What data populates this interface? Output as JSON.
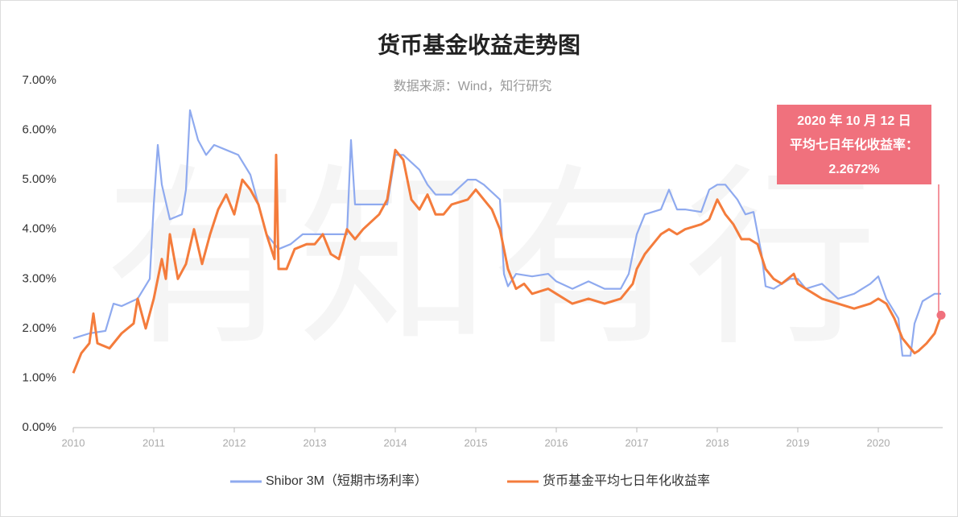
{
  "chart_data": {
    "type": "line",
    "title": "货币基金收益走势图",
    "subtitle": "数据来源：Wind，知行研究",
    "watermark": "有知有行",
    "annotation": [
      "2020 年 10 月 12 日",
      "平均七日年化收益率：",
      "2.2672%"
    ],
    "xlim": [
      2010,
      2020.8
    ],
    "xticks": [
      2010,
      2011,
      2012,
      2013,
      2014,
      2015,
      2016,
      2017,
      2018,
      2019,
      2020
    ],
    "ylim": [
      0,
      7
    ],
    "yticks": [
      {
        "value": 0,
        "label": "0.00%"
      },
      {
        "value": 1,
        "label": "1.00%"
      },
      {
        "value": 2,
        "label": "2.00%"
      },
      {
        "value": 3,
        "label": "3.00%"
      },
      {
        "value": 4,
        "label": "4.00%"
      },
      {
        "value": 5,
        "label": "5.00%"
      },
      {
        "value": 6,
        "label": "6.00%"
      },
      {
        "value": 7,
        "label": "7.00%"
      }
    ],
    "series": [
      {
        "name": "Shibor 3M（短期市场利率）",
        "color": "#8faaef",
        "x": [
          2010.0,
          2010.2,
          2010.4,
          2010.5,
          2010.6,
          2010.8,
          2010.95,
          2011.0,
          2011.05,
          2011.1,
          2011.2,
          2011.35,
          2011.4,
          2011.45,
          2011.55,
          2011.65,
          2011.75,
          2011.9,
          2012.05,
          2012.2,
          2012.3,
          2012.4,
          2012.55,
          2012.7,
          2012.85,
          2013.0,
          2013.25,
          2013.4,
          2013.45,
          2013.5,
          2013.6,
          2013.8,
          2013.9,
          2014.0,
          2014.1,
          2014.3,
          2014.4,
          2014.5,
          2014.7,
          2014.9,
          2015.0,
          2015.1,
          2015.3,
          2015.35,
          2015.4,
          2015.5,
          2015.7,
          2015.9,
          2016.0,
          2016.2,
          2016.4,
          2016.6,
          2016.8,
          2016.9,
          2017.0,
          2017.1,
          2017.3,
          2017.4,
          2017.5,
          2017.6,
          2017.8,
          2017.9,
          2018.0,
          2018.1,
          2018.25,
          2018.35,
          2018.45,
          2018.55,
          2018.6,
          2018.7,
          2018.9,
          2019.0,
          2019.1,
          2019.3,
          2019.5,
          2019.7,
          2019.9,
          2020.0,
          2020.1,
          2020.25,
          2020.3,
          2020.4,
          2020.45,
          2020.55,
          2020.7,
          2020.78
        ],
        "values": [
          1.8,
          1.9,
          1.95,
          2.5,
          2.45,
          2.6,
          3.0,
          4.5,
          5.7,
          4.9,
          4.2,
          4.3,
          4.8,
          6.4,
          5.8,
          5.5,
          5.7,
          5.6,
          5.5,
          5.1,
          4.5,
          3.9,
          3.6,
          3.7,
          3.9,
          3.9,
          3.9,
          3.9,
          5.8,
          4.5,
          4.5,
          4.5,
          4.5,
          5.5,
          5.5,
          5.2,
          4.9,
          4.7,
          4.7,
          5.0,
          5.0,
          4.9,
          4.6,
          3.1,
          2.85,
          3.1,
          3.05,
          3.1,
          2.95,
          2.8,
          2.95,
          2.8,
          2.8,
          3.1,
          3.9,
          4.3,
          4.4,
          4.8,
          4.4,
          4.4,
          4.35,
          4.8,
          4.9,
          4.9,
          4.6,
          4.3,
          4.35,
          3.5,
          2.85,
          2.8,
          3.0,
          3.0,
          2.8,
          2.9,
          2.6,
          2.7,
          2.9,
          3.05,
          2.6,
          2.2,
          1.45,
          1.45,
          2.1,
          2.55,
          2.7,
          2.7
        ]
      },
      {
        "name": "货币基金平均七日年化收益率",
        "color": "#f47c3c",
        "x": [
          2010.0,
          2010.1,
          2010.2,
          2010.25,
          2010.3,
          2010.45,
          2010.6,
          2010.75,
          2010.8,
          2010.9,
          2011.0,
          2011.1,
          2011.15,
          2011.2,
          2011.3,
          2011.4,
          2011.5,
          2011.6,
          2011.7,
          2011.8,
          2011.9,
          2012.0,
          2012.1,
          2012.2,
          2012.3,
          2012.4,
          2012.5,
          2012.52,
          2012.55,
          2012.65,
          2012.75,
          2012.9,
          2013.0,
          2013.1,
          2013.2,
          2013.3,
          2013.4,
          2013.5,
          2013.6,
          2013.8,
          2013.9,
          2014.0,
          2014.1,
          2014.2,
          2014.3,
          2014.4,
          2014.5,
          2014.6,
          2014.7,
          2014.9,
          2015.0,
          2015.1,
          2015.2,
          2015.3,
          2015.35,
          2015.4,
          2015.5,
          2015.6,
          2015.7,
          2015.9,
          2016.0,
          2016.2,
          2016.4,
          2016.6,
          2016.8,
          2016.95,
          2017.0,
          2017.1,
          2017.2,
          2017.3,
          2017.4,
          2017.5,
          2017.6,
          2017.8,
          2017.9,
          2018.0,
          2018.1,
          2018.2,
          2018.3,
          2018.4,
          2018.5,
          2018.6,
          2018.7,
          2018.8,
          2018.95,
          2019.0,
          2019.1,
          2019.3,
          2019.5,
          2019.7,
          2019.9,
          2020.0,
          2020.1,
          2020.2,
          2020.3,
          2020.4,
          2020.45,
          2020.5,
          2020.6,
          2020.7,
          2020.78
        ],
        "values": [
          1.1,
          1.5,
          1.7,
          2.3,
          1.7,
          1.6,
          1.9,
          2.1,
          2.6,
          2.0,
          2.6,
          3.4,
          3.0,
          3.9,
          3.0,
          3.3,
          4.0,
          3.3,
          3.9,
          4.4,
          4.7,
          4.3,
          5.0,
          4.8,
          4.5,
          3.9,
          3.4,
          5.5,
          3.2,
          3.2,
          3.6,
          3.7,
          3.7,
          3.9,
          3.5,
          3.4,
          4.0,
          3.8,
          4.0,
          4.3,
          4.6,
          5.6,
          5.4,
          4.6,
          4.4,
          4.7,
          4.3,
          4.3,
          4.5,
          4.6,
          4.8,
          4.6,
          4.4,
          4.0,
          3.6,
          3.2,
          2.8,
          2.9,
          2.7,
          2.8,
          2.7,
          2.5,
          2.6,
          2.5,
          2.6,
          2.9,
          3.2,
          3.5,
          3.7,
          3.9,
          4.0,
          3.9,
          4.0,
          4.1,
          4.2,
          4.6,
          4.3,
          4.1,
          3.8,
          3.8,
          3.7,
          3.2,
          3.0,
          2.9,
          3.1,
          2.9,
          2.8,
          2.6,
          2.5,
          2.4,
          2.5,
          2.6,
          2.5,
          2.2,
          1.8,
          1.6,
          1.5,
          1.55,
          1.7,
          1.9,
          2.2672
        ]
      }
    ]
  }
}
